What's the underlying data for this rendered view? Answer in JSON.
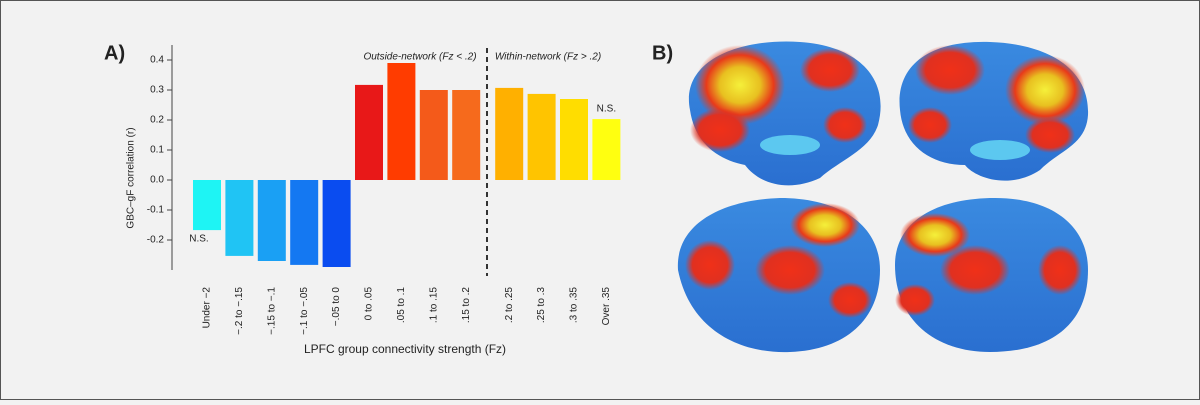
{
  "panel_labels": [
    "A)",
    "B)"
  ],
  "chart_data": {
    "type": "bar",
    "ylabel": "GBC–gF correlation (r)",
    "xlabel": "LPFC group connectivity strength (Fz)",
    "categories": [
      "Under −2",
      "−.2 to −.15",
      "−.15 to −.1",
      "−.1 to −.05",
      "−.05 to 0",
      "0 to .05",
      ".05 to .1",
      ".1 to .15",
      ".15 to .2",
      ".2 to .25",
      ".25 to .3",
      ".3 to .35",
      "Over .35"
    ],
    "values": [
      -0.167,
      -0.253,
      -0.27,
      -0.283,
      -0.29,
      0.317,
      0.39,
      0.3,
      0.3,
      0.307,
      0.287,
      0.27,
      0.203
    ],
    "colors": [
      "#1ef4f4",
      "#20c4f4",
      "#1aa0f4",
      "#1478f2",
      "#0a4cf0",
      "#e81818",
      "#ff3c00",
      "#f45a1a",
      "#f66a1c",
      "#ffb000",
      "#ffc400",
      "#ffdd00",
      "#ffff10"
    ],
    "ylim": [
      -0.3,
      0.45
    ],
    "yticks": [
      -0.2,
      -0.1,
      {
        "value": 0,
        "label": "0.0"
      },
      0.1,
      0.2,
      0.3,
      0.4
    ],
    "annotations": [
      "Outside-network (Fz < .2)",
      "Within-network (Fz > .2)",
      "N.S.",
      "N.S."
    ]
  }
}
